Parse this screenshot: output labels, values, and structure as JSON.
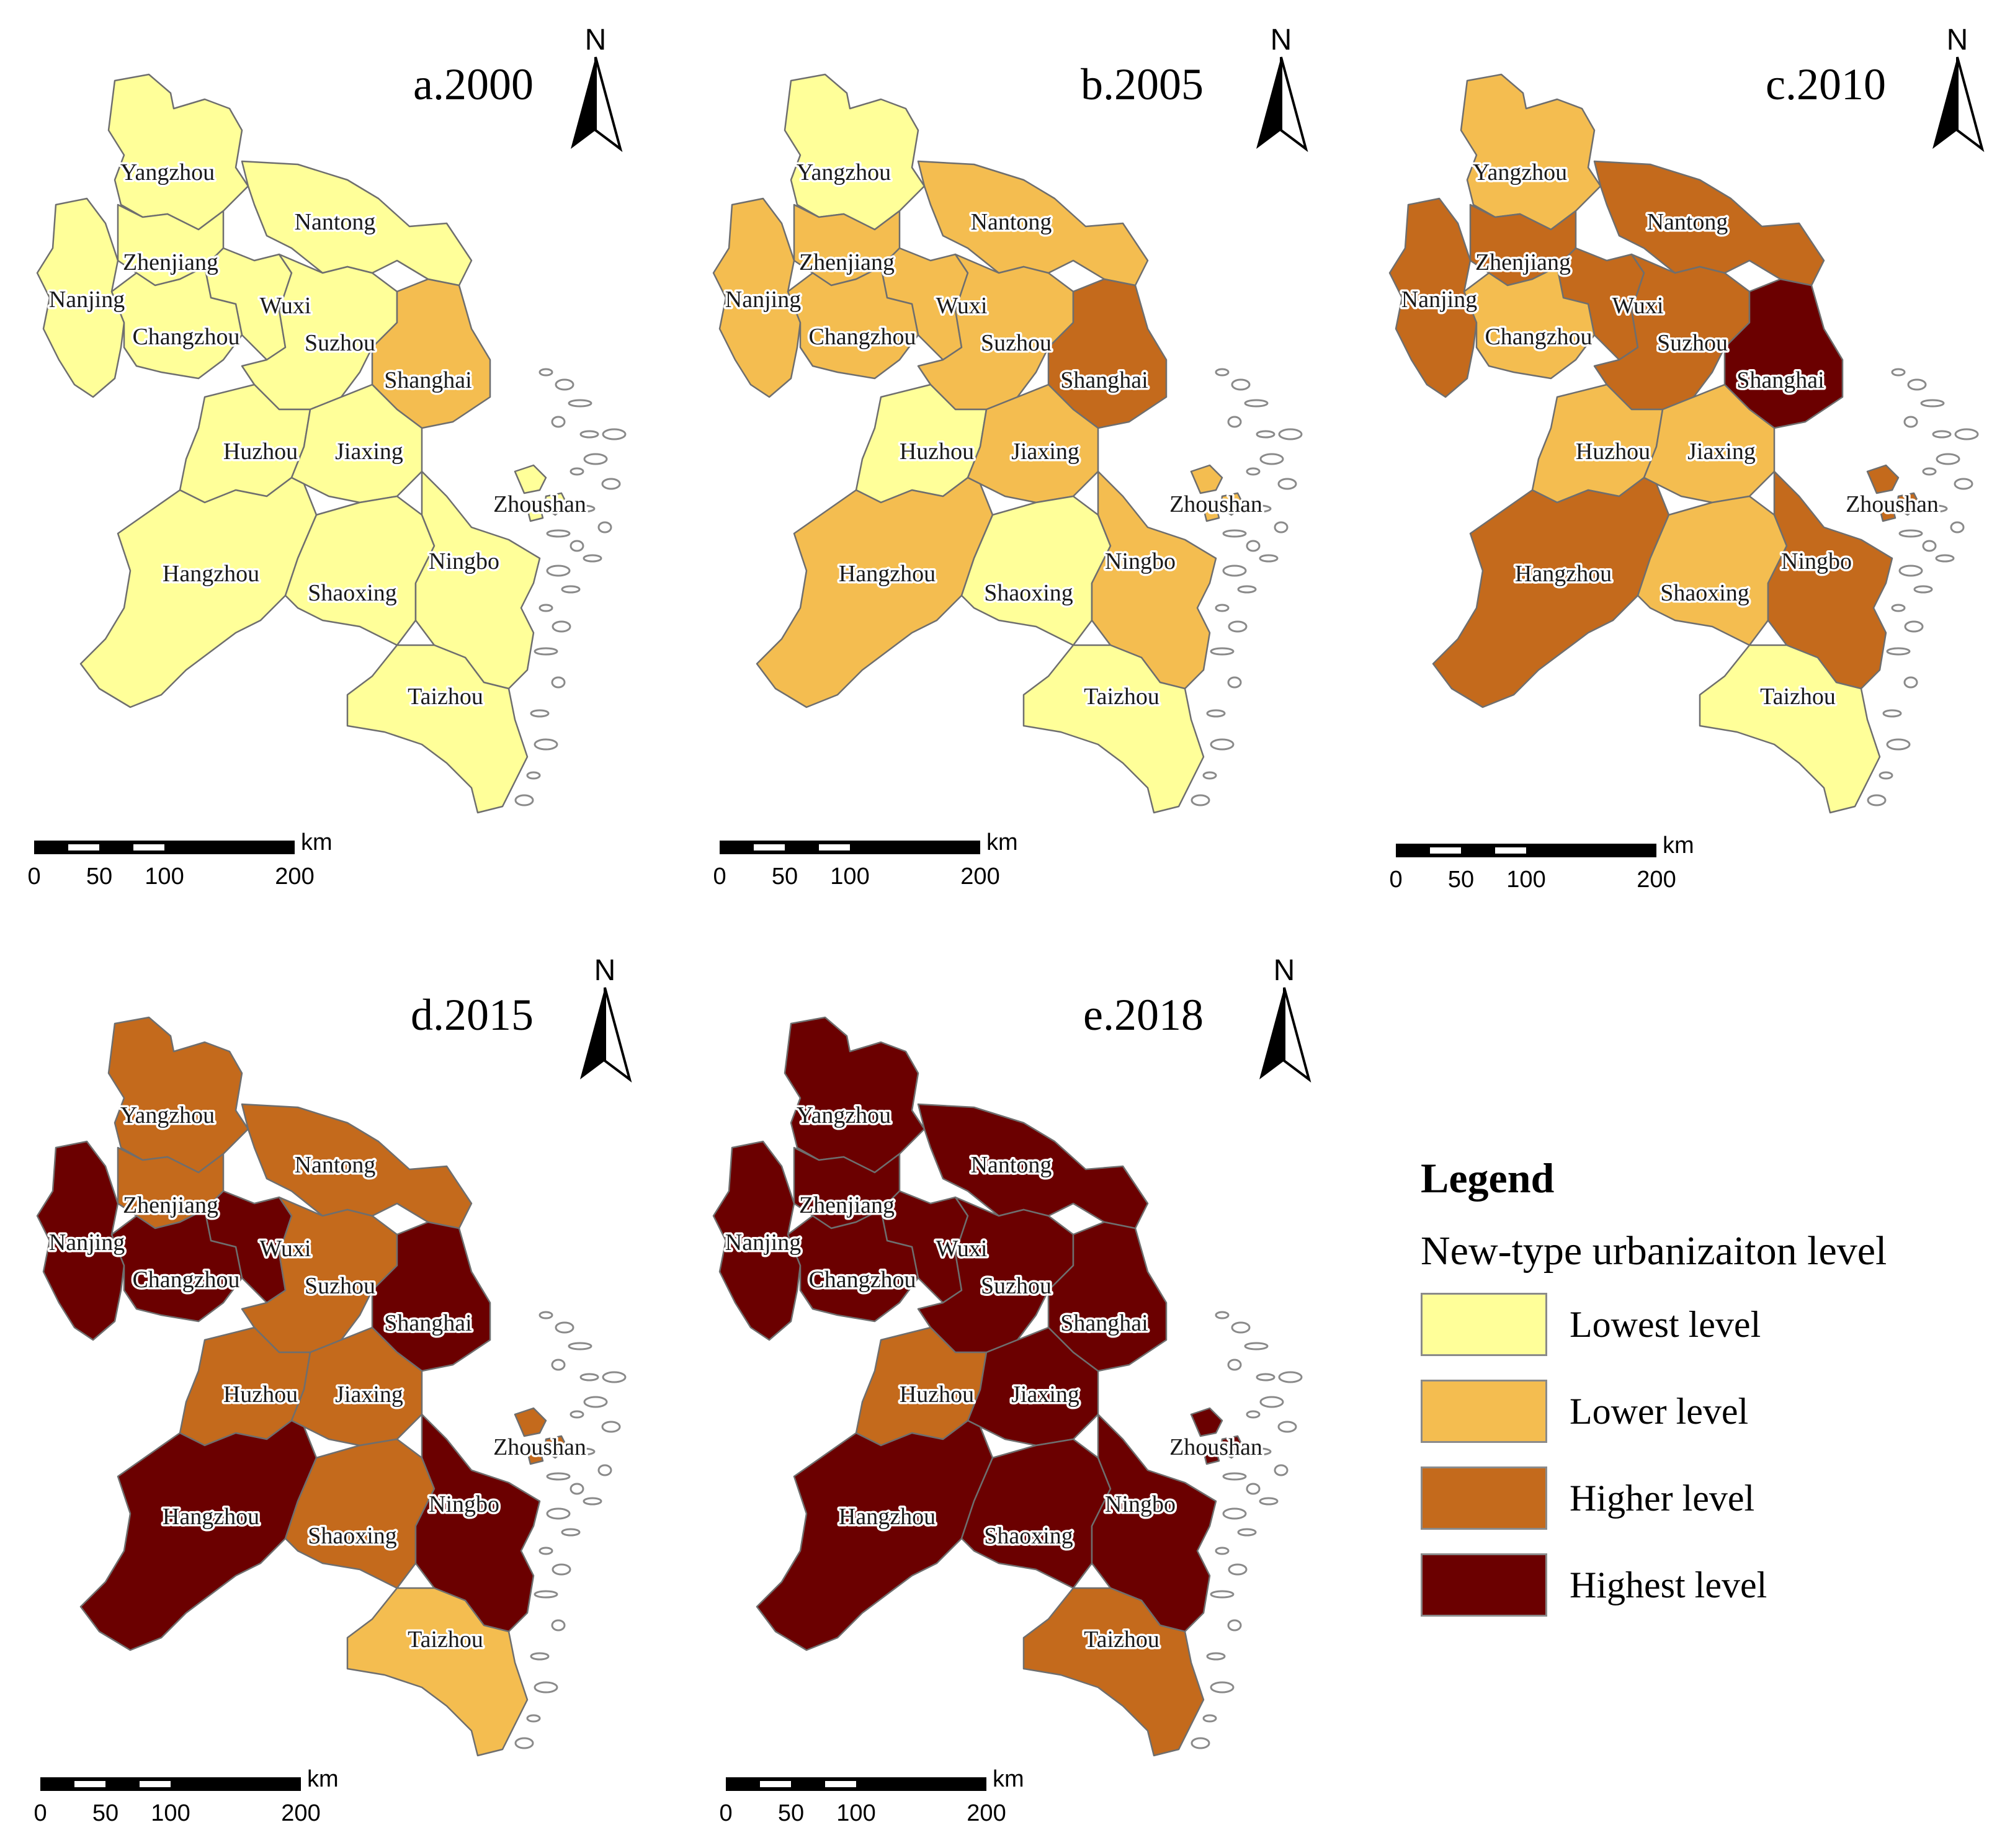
{
  "colors": {
    "Lowest level": "#ffff99",
    "Lower level": "#f4bd50",
    "Higher level": "#c46a1c",
    "Highest level": "#6b0000",
    "boundary": "#6e6e6e"
  },
  "cities": [
    "Yangzhou",
    "Nantong",
    "Zhenjiang",
    "Nanjing",
    "Wuxi",
    "Changzhou",
    "Suzhou",
    "Shanghai",
    "Huzhou",
    "Jiaxing",
    "Zhoushan",
    "Hangzhou",
    "Shaoxing",
    "Ningbo",
    "Taizhou"
  ],
  "panels": [
    {
      "title": "a.2000",
      "levels": {
        "Yangzhou": "Lowest level",
        "Nantong": "Lowest level",
        "Zhenjiang": "Lowest level",
        "Nanjing": "Lowest level",
        "Wuxi": "Lowest level",
        "Changzhou": "Lowest level",
        "Suzhou": "Lowest level",
        "Shanghai": "Lower level",
        "Huzhou": "Lowest level",
        "Jiaxing": "Lowest level",
        "Zhoushan": "Lowest level",
        "Hangzhou": "Lowest level",
        "Shaoxing": "Lowest level",
        "Ningbo": "Lowest level",
        "Taizhou": "Lowest level"
      }
    },
    {
      "title": "b.2005",
      "levels": {
        "Yangzhou": "Lowest level",
        "Nantong": "Lower level",
        "Zhenjiang": "Lower level",
        "Nanjing": "Lower level",
        "Wuxi": "Lower level",
        "Changzhou": "Lower level",
        "Suzhou": "Lower level",
        "Shanghai": "Higher level",
        "Huzhou": "Lowest level",
        "Jiaxing": "Lower level",
        "Zhoushan": "Lower level",
        "Hangzhou": "Lower level",
        "Shaoxing": "Lowest level",
        "Ningbo": "Lower level",
        "Taizhou": "Lowest level"
      }
    },
    {
      "title": "c.2010",
      "levels": {
        "Yangzhou": "Lower level",
        "Nantong": "Higher level",
        "Zhenjiang": "Higher level",
        "Nanjing": "Higher level",
        "Wuxi": "Higher level",
        "Changzhou": "Lower level",
        "Suzhou": "Higher level",
        "Shanghai": "Highest level",
        "Huzhou": "Lower level",
        "Jiaxing": "Lower level",
        "Zhoushan": "Higher level",
        "Hangzhou": "Higher level",
        "Shaoxing": "Lower level",
        "Ningbo": "Higher level",
        "Taizhou": "Lowest level"
      }
    },
    {
      "title": "d.2015",
      "levels": {
        "Yangzhou": "Higher level",
        "Nantong": "Higher level",
        "Zhenjiang": "Higher level",
        "Nanjing": "Highest level",
        "Wuxi": "Highest level",
        "Changzhou": "Highest level",
        "Suzhou": "Higher level",
        "Shanghai": "Highest level",
        "Huzhou": "Higher level",
        "Jiaxing": "Higher level",
        "Zhoushan": "Higher level",
        "Hangzhou": "Highest level",
        "Shaoxing": "Higher level",
        "Ningbo": "Highest level",
        "Taizhou": "Lower level"
      }
    },
    {
      "title": "e.2018",
      "levels": {
        "Yangzhou": "Highest level",
        "Nantong": "Highest level",
        "Zhenjiang": "Highest level",
        "Nanjing": "Highest level",
        "Wuxi": "Highest level",
        "Changzhou": "Highest level",
        "Suzhou": "Highest level",
        "Shanghai": "Highest level",
        "Huzhou": "Higher level",
        "Jiaxing": "Highest level",
        "Zhoushan": "Highest level",
        "Hangzhou": "Highest level",
        "Shaoxing": "Highest level",
        "Ningbo": "Highest level",
        "Taizhou": "Higher level"
      }
    }
  ],
  "north_label": "N",
  "scale_bar": {
    "unit": "km",
    "ticks": [
      "0",
      "50",
      "100",
      "200"
    ]
  },
  "legend": {
    "title": "Legend",
    "subtitle": "New-type urbanizaiton level",
    "items": [
      "Lowest level",
      "Lower level",
      "Higher level",
      "Highest level"
    ]
  }
}
